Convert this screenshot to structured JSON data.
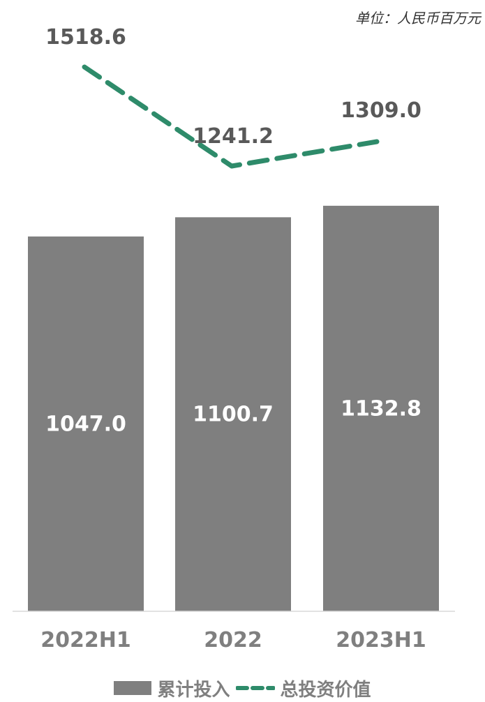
{
  "unit_label": "单位：人民币百万元",
  "colors": {
    "bar": "#7f7f7f",
    "line": "#2e8b6a",
    "axis": "#d9d9d9",
    "label_dark": "#595959",
    "label_light": "#ffffff"
  },
  "chart_data": {
    "type": "bar",
    "categories": [
      "2022H1",
      "2022",
      "2023H1"
    ],
    "series": [
      {
        "name": "累计投入",
        "type": "bar",
        "values": [
          1047.0,
          1100.7,
          1132.8
        ],
        "labels": [
          "1047.0",
          "1100.7",
          "1132.8"
        ]
      },
      {
        "name": "总投资价值",
        "type": "line",
        "style": "dashed",
        "values": [
          1518.6,
          1241.2,
          1309.0
        ],
        "labels": [
          "1518.6",
          "1241.2",
          "1309.0"
        ]
      }
    ],
    "legend_position": "bottom",
    "grid": false
  }
}
